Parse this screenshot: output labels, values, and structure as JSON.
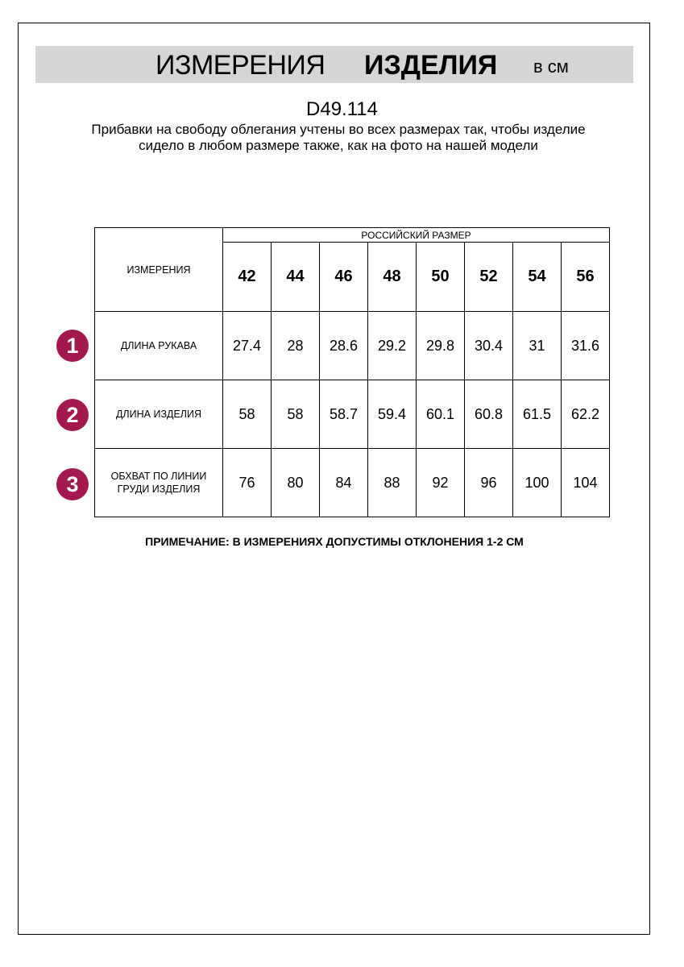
{
  "header": {
    "title_regular": "ИЗМЕРЕНИЯ",
    "title_bold": "ИЗДЕЛИЯ",
    "unit": "в см"
  },
  "product_code": "D49.114",
  "description": "Прибавки на свободу облегания учтены во всех размерах так, чтобы изделие сидело в любом размере также, как на фото на нашей модели",
  "table": {
    "measurements_header": "ИЗМЕРЕНИЯ",
    "size_group_header": "РОССИЙСКИЙ РАЗМЕР",
    "sizes": [
      "42",
      "44",
      "46",
      "48",
      "50",
      "52",
      "54",
      "56"
    ],
    "rows": [
      {
        "number": "1",
        "label": "ДЛИНА РУКАВА",
        "values": [
          "27.4",
          "28",
          "28.6",
          "29.2",
          "29.8",
          "30.4",
          "31",
          "31.6"
        ]
      },
      {
        "number": "2",
        "label": "ДЛИНА ИЗДЕЛИЯ",
        "values": [
          "58",
          "58",
          "58.7",
          "59.4",
          "60.1",
          "60.8",
          "61.5",
          "62.2"
        ]
      },
      {
        "number": "3",
        "label": "ОБХВАТ ПО ЛИНИИ ГРУДИ ИЗДЕЛИЯ",
        "values": [
          "76",
          "80",
          "84",
          "88",
          "92",
          "96",
          "100",
          "104"
        ]
      }
    ]
  },
  "note": "ПРИМЕЧАНИЕ: В ИЗМЕРЕНИЯХ ДОПУСТИМЫ ОТКЛОНЕНИЯ 1-2 СМ",
  "colors": {
    "badge": "#a3184f",
    "banner": "#d5d5d5"
  }
}
